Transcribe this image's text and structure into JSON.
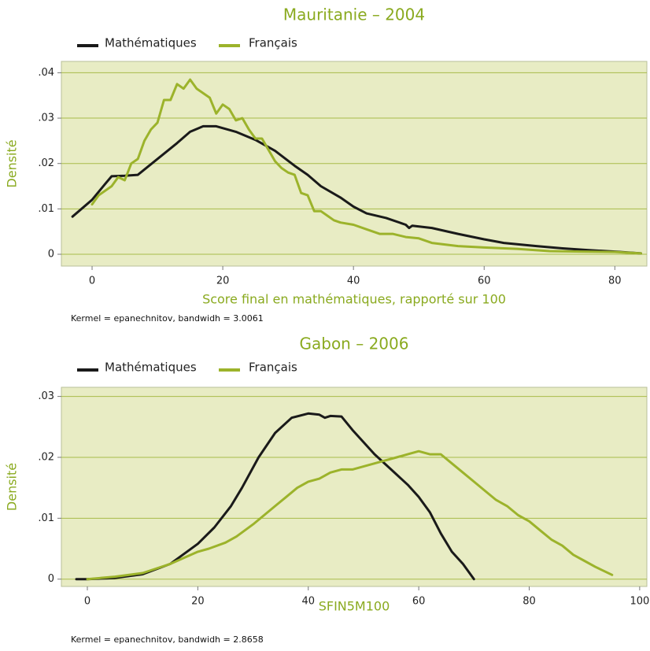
{
  "chart_data": [
    {
      "type": "line",
      "title": "Mauritanie – 2004",
      "xlabel": "Score final en mathématiques, rapporté sur 100",
      "ylabel": "Densité",
      "note": "Kermel = epanechnitov, bandwidh = 3.0061",
      "xlim": [
        -4.7,
        84.9
      ],
      "ylim": [
        -0.0026,
        0.0425
      ],
      "xticks": [
        0,
        20,
        40,
        60,
        80
      ],
      "yticks": [
        0,
        {
          "value": 0.01,
          "label": ".01"
        },
        {
          "value": 0.02,
          "label": ".02"
        },
        {
          "value": 0.03,
          "label": ".03"
        },
        {
          "value": 0.04,
          "label": ".04"
        }
      ],
      "grid": true,
      "series": [
        {
          "name": "Mathématiques",
          "color": "#1a1a1a",
          "x": [
            -3,
            0,
            2,
            3,
            5,
            7,
            10,
            13,
            15,
            17,
            19,
            22,
            25,
            28,
            31,
            33,
            35,
            38,
            40,
            42,
            45,
            48,
            48.5,
            49,
            52,
            56,
            60,
            63,
            68,
            72,
            76,
            80,
            84
          ],
          "values": [
            0.0083,
            0.012,
            0.0155,
            0.0172,
            0.0173,
            0.0175,
            0.021,
            0.0245,
            0.027,
            0.0282,
            0.0282,
            0.027,
            0.0252,
            0.0228,
            0.0195,
            0.0175,
            0.015,
            0.0125,
            0.0105,
            0.009,
            0.008,
            0.0065,
            0.0058,
            0.0063,
            0.0058,
            0.0045,
            0.0033,
            0.0025,
            0.0018,
            0.0013,
            0.0009,
            0.0006,
            0.0002
          ]
        },
        {
          "name": "Français",
          "color": "#9cb32b",
          "x": [
            0,
            1,
            3,
            4,
            5,
            6,
            7,
            8,
            9,
            10,
            11,
            12,
            13,
            14,
            15,
            16,
            17,
            18,
            19,
            20,
            21,
            22,
            23,
            24,
            25,
            26,
            27,
            28,
            29,
            30,
            31,
            32,
            33,
            34,
            35,
            36,
            37,
            38,
            40,
            42,
            44,
            46,
            48,
            50,
            52,
            56,
            60,
            65,
            70,
            75,
            80,
            84
          ],
          "values": [
            0.011,
            0.013,
            0.015,
            0.017,
            0.0163,
            0.02,
            0.021,
            0.025,
            0.0275,
            0.029,
            0.034,
            0.034,
            0.0375,
            0.0365,
            0.0385,
            0.0365,
            0.0355,
            0.0345,
            0.031,
            0.033,
            0.032,
            0.0295,
            0.03,
            0.0275,
            0.0255,
            0.0255,
            0.023,
            0.0205,
            0.019,
            0.018,
            0.0175,
            0.0135,
            0.013,
            0.0095,
            0.0095,
            0.0085,
            0.0075,
            0.007,
            0.0065,
            0.0055,
            0.0045,
            0.0045,
            0.0038,
            0.0035,
            0.0025,
            0.0018,
            0.0015,
            0.0012,
            0.0007,
            0.0006,
            0.0005,
            0.0002
          ]
        }
      ]
    },
    {
      "type": "line",
      "title": "Gabon – 2006",
      "xlabel": "SFIN5M100",
      "ylabel": "Densité",
      "note": "Kermel = epanechnitov, bandwidh = 2.8658",
      "xlim": [
        -4.7,
        101.3
      ],
      "ylim": [
        -0.0012,
        0.0315
      ],
      "xticks": [
        0,
        20,
        40,
        60,
        80,
        100
      ],
      "yticks": [
        0,
        {
          "value": 0.01,
          "label": ".01"
        },
        {
          "value": 0.02,
          "label": ".02"
        },
        {
          "value": 0.03,
          "label": ".03"
        }
      ],
      "grid": true,
      "series": [
        {
          "name": "Mathématiques",
          "color": "#1a1a1a",
          "x": [
            -2,
            0,
            5,
            10,
            15,
            20,
            23,
            26,
            28,
            31,
            34,
            37,
            40,
            42,
            43,
            44,
            46,
            48,
            50,
            52,
            55,
            58,
            60,
            62,
            64,
            66,
            68,
            70
          ],
          "values": [
            0,
            0,
            0.0002,
            0.0008,
            0.0025,
            0.0058,
            0.0085,
            0.012,
            0.015,
            0.02,
            0.024,
            0.0265,
            0.0272,
            0.027,
            0.0265,
            0.0268,
            0.0267,
            0.0245,
            0.0225,
            0.0205,
            0.018,
            0.0155,
            0.0135,
            0.011,
            0.0075,
            0.0045,
            0.0025,
            0
          ]
        },
        {
          "name": "Français",
          "color": "#9cb32b",
          "x": [
            0,
            5,
            10,
            15,
            20,
            22,
            25,
            27,
            30,
            32,
            34,
            36,
            38,
            40,
            42,
            44,
            46,
            48,
            50,
            52,
            54,
            56,
            58,
            60,
            62,
            64,
            66,
            68,
            70,
            72,
            74,
            76,
            78,
            80,
            82,
            84,
            86,
            88,
            90,
            92,
            95
          ],
          "values": [
            0,
            0.0004,
            0.001,
            0.0025,
            0.0045,
            0.005,
            0.006,
            0.007,
            0.009,
            0.0105,
            0.012,
            0.0135,
            0.015,
            0.016,
            0.0165,
            0.0175,
            0.018,
            0.018,
            0.0185,
            0.019,
            0.0195,
            0.02,
            0.0205,
            0.021,
            0.0205,
            0.0205,
            0.019,
            0.0175,
            0.016,
            0.0145,
            0.013,
            0.012,
            0.0105,
            0.0095,
            0.008,
            0.0065,
            0.0055,
            0.004,
            0.003,
            0.002,
            0.0007
          ]
        }
      ]
    }
  ]
}
